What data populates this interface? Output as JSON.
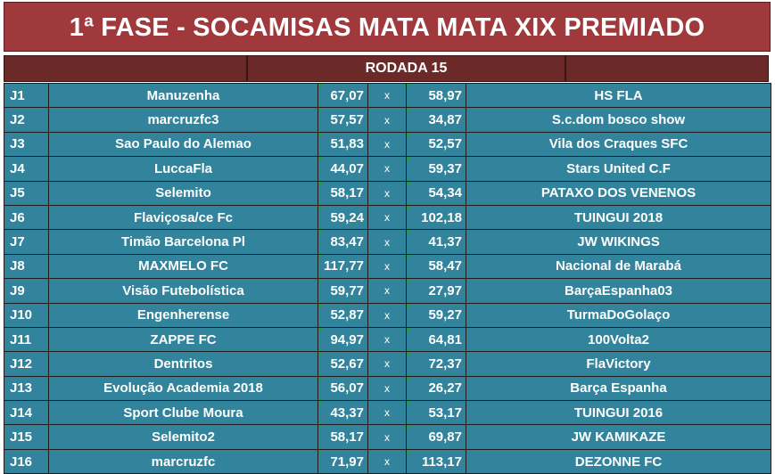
{
  "title": "1ª FASE - SOCAMISAS MATA MATA XIX PREMIADO",
  "round_label": "RODADA 15",
  "separator": "x",
  "matches": [
    {
      "code": "J1",
      "home": "Manuzenha",
      "home_score": "67,07",
      "away_score": "58,97",
      "away": "HS FLA"
    },
    {
      "code": "J2",
      "home": "marcruzfc3",
      "home_score": "57,57",
      "away_score": "34,87",
      "away": "S.c.dom bosco show"
    },
    {
      "code": "J3",
      "home": "Sao Paulo do Alemao",
      "home_score": "51,83",
      "away_score": "52,57",
      "away": "Vila dos Craques SFC"
    },
    {
      "code": "J4",
      "home": "LuccaFla",
      "home_score": "44,07",
      "away_score": "59,37",
      "away": "Stars United C.F"
    },
    {
      "code": "J5",
      "home": "Selemito",
      "home_score": "58,17",
      "away_score": "54,34",
      "away": "PATAXO DOS VENENOS"
    },
    {
      "code": "J6",
      "home": "Flaviçosa/ce Fc",
      "home_score": "59,24",
      "away_score": "102,18",
      "away": "TUINGUI 2018"
    },
    {
      "code": "J7",
      "home": "Timão Barcelona Pl",
      "home_score": "83,47",
      "away_score": "41,37",
      "away": "JW WIKINGS"
    },
    {
      "code": "J8",
      "home": "MAXMELO FC",
      "home_score": "117,77",
      "away_score": "58,47",
      "away": "Nacional de Marabá"
    },
    {
      "code": "J9",
      "home": "Visão Futebolística",
      "home_score": "59,77",
      "away_score": "27,97",
      "away": "BarçaEspanha03"
    },
    {
      "code": "J10",
      "home": "Engenherense",
      "home_score": "52,87",
      "away_score": "59,27",
      "away": "TurmaDoGolaço"
    },
    {
      "code": "J11",
      "home": "ZAPPE FC",
      "home_score": "94,97",
      "away_score": "64,81",
      "away": "100Volta2"
    },
    {
      "code": "J12",
      "home": "Dentritos",
      "home_score": "52,67",
      "away_score": "72,37",
      "away": "FlaVictory"
    },
    {
      "code": "J13",
      "home": "Evolução Academia 2018",
      "home_score": "56,07",
      "away_score": "26,27",
      "away": "Barça Espanha"
    },
    {
      "code": "J14",
      "home": "Sport Clube Moura",
      "home_score": "43,37",
      "away_score": "53,17",
      "away": "TUINGUI 2016"
    },
    {
      "code": "J15",
      "home": "Selemito2",
      "home_score": "58,17",
      "away_score": "69,87",
      "away": "JW KAMIKAZE"
    },
    {
      "code": "J16",
      "home": "marcruzfc",
      "home_score": "71,97",
      "away_score": "113,17",
      "away": "DEZONNE FC"
    }
  ]
}
